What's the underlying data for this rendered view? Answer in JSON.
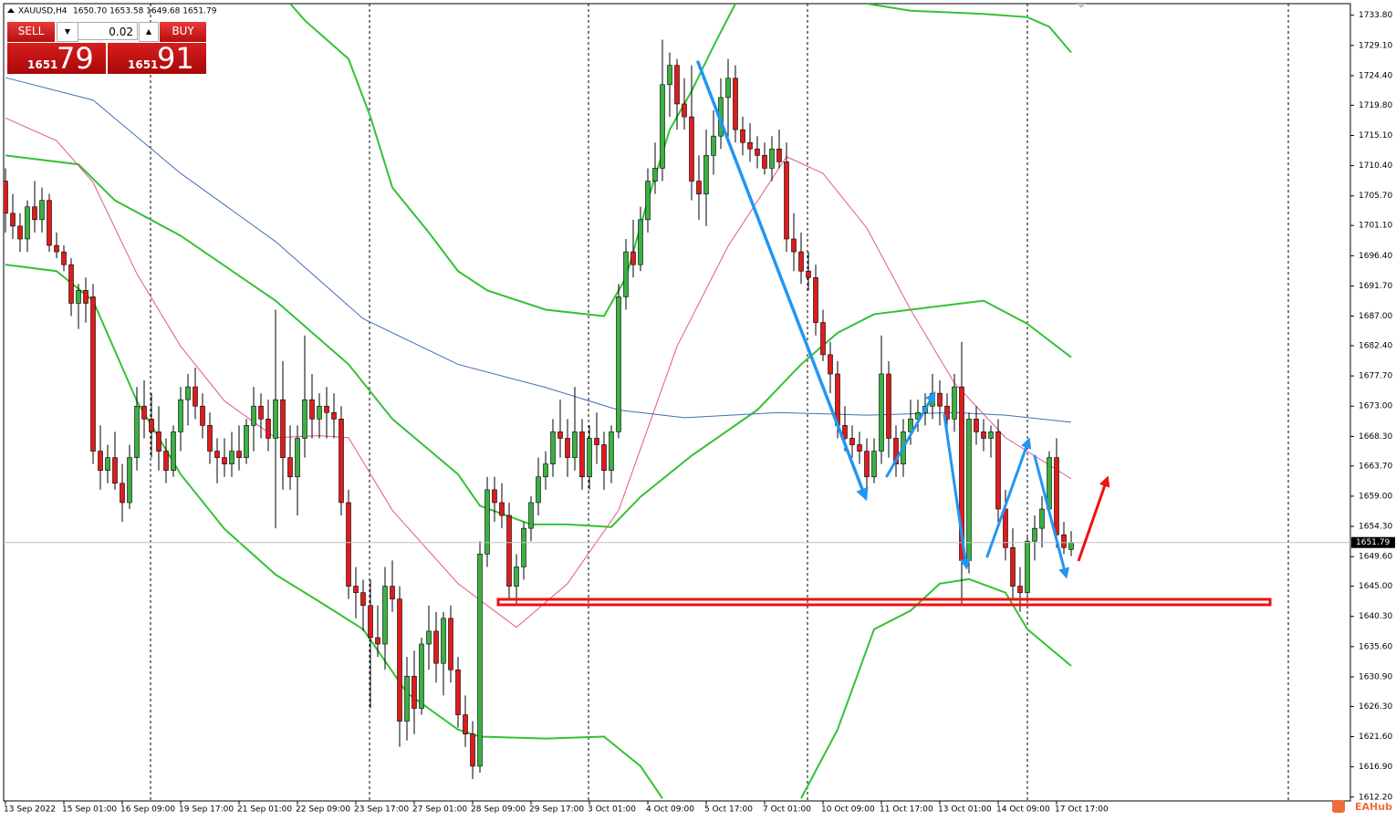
{
  "chart_data": {
    "type": "candlestick",
    "title": "XAUUSD,H4",
    "subtitle": "1650.70 1653.58 1649.68 1651.79",
    "categories": [
      "13 Sep 2022",
      null,
      null,
      null,
      null,
      null,
      null,
      null,
      "15 Sep 01:00",
      null,
      null,
      null,
      null,
      null,
      null,
      null,
      "16 Sep 09:00",
      null,
      null,
      null,
      null,
      null,
      null,
      null,
      "19 Sep 17:00",
      null,
      null,
      null,
      null,
      null,
      null,
      null,
      "21 Sep 01:00",
      null,
      null,
      null,
      null,
      null,
      null,
      null,
      "22 Sep 09:00",
      null,
      null,
      null,
      null,
      null,
      null,
      null,
      "23 Sep 17:00",
      null,
      null,
      null,
      null,
      null,
      null,
      null,
      "27 Sep 01:00",
      null,
      null,
      null,
      null,
      null,
      null,
      null,
      "28 Sep 09:00",
      null,
      null,
      null,
      null,
      null,
      null,
      null,
      "29 Sep 17:00",
      null,
      null,
      null,
      null,
      null,
      null,
      null,
      "3 Oct 01:00",
      null,
      null,
      null,
      null,
      null,
      null,
      null,
      "4 Oct 09:00",
      null,
      null,
      null,
      null,
      null,
      null,
      null,
      "5 Oct 17:00",
      null,
      null,
      null,
      null,
      null,
      null,
      null,
      "7 Oct 01:00",
      null,
      null,
      null,
      null,
      null,
      null,
      null,
      "10 Oct 09:00",
      null,
      null,
      null,
      null,
      null,
      null,
      null,
      "11 Oct 17:00",
      null,
      null,
      null,
      null,
      null,
      null,
      null,
      "13 Oct 01:00",
      null,
      null,
      null,
      null,
      null,
      null,
      null,
      "14 Oct 09:00",
      null,
      null,
      null,
      null,
      null,
      null,
      null,
      "17 Oct 17:00",
      null,
      null
    ],
    "candles": [
      [
        1708,
        1710,
        1700,
        1703
      ],
      [
        1703,
        1706,
        1699,
        1701
      ],
      [
        1701,
        1703,
        1697,
        1699
      ],
      [
        1699,
        1705,
        1697,
        1704
      ],
      [
        1704,
        1708,
        1700,
        1702
      ],
      [
        1702,
        1707,
        1700,
        1705
      ],
      [
        1705,
        1706,
        1697,
        1698
      ],
      [
        1698,
        1700,
        1696,
        1697
      ],
      [
        1697,
        1698,
        1694,
        1695
      ],
      [
        1695,
        1696,
        1687,
        1689
      ],
      [
        1689,
        1692,
        1685,
        1691
      ],
      [
        1691,
        1693,
        1686,
        1689
      ],
      [
        1690,
        1692,
        1664,
        1666
      ],
      [
        1666,
        1670,
        1660,
        1663
      ],
      [
        1663,
        1667,
        1661,
        1665
      ],
      [
        1665,
        1669,
        1660,
        1661
      ],
      [
        1661,
        1664,
        1655,
        1658
      ],
      [
        1658,
        1667,
        1657,
        1665
      ],
      [
        1665,
        1676,
        1663,
        1673
      ],
      [
        1673,
        1677,
        1668,
        1671
      ],
      [
        1671,
        1675,
        1665,
        1669
      ],
      [
        1669,
        1673,
        1663,
        1666
      ],
      [
        1666,
        1668,
        1661,
        1663
      ],
      [
        1663,
        1670,
        1662,
        1669
      ],
      [
        1669,
        1676,
        1666,
        1674
      ],
      [
        1674,
        1678,
        1670,
        1676
      ],
      [
        1676,
        1679,
        1671,
        1673
      ],
      [
        1673,
        1675,
        1668,
        1670
      ],
      [
        1670,
        1672,
        1664,
        1666
      ],
      [
        1666,
        1668,
        1661,
        1665
      ],
      [
        1665,
        1668,
        1662,
        1664
      ],
      [
        1664,
        1669,
        1662,
        1666
      ],
      [
        1666,
        1670,
        1663,
        1665
      ],
      [
        1665,
        1671,
        1664,
        1670
      ],
      [
        1670,
        1676,
        1666,
        1673
      ],
      [
        1673,
        1675,
        1668,
        1671
      ],
      [
        1671,
        1674,
        1666,
        1668
      ],
      [
        1668,
        1688,
        1654,
        1674
      ],
      [
        1674,
        1680,
        1660,
        1665
      ],
      [
        1665,
        1670,
        1660,
        1662
      ],
      [
        1662,
        1670,
        1656,
        1668
      ],
      [
        1668,
        1684,
        1665,
        1674
      ],
      [
        1674,
        1678,
        1668,
        1671
      ],
      [
        1671,
        1675,
        1668,
        1673
      ],
      [
        1673,
        1676,
        1668,
        1672
      ],
      [
        1672,
        1675,
        1668,
        1671
      ],
      [
        1671,
        1673,
        1656,
        1658
      ],
      [
        1658,
        1660,
        1643,
        1645
      ],
      [
        1645,
        1648,
        1640,
        1644
      ],
      [
        1644,
        1646,
        1638,
        1642
      ],
      [
        1642,
        1646,
        1626,
        1637
      ],
      [
        1637,
        1642,
        1634,
        1636
      ],
      [
        1636,
        1648,
        1632,
        1645
      ],
      [
        1645,
        1649,
        1641,
        1643
      ],
      [
        1643,
        1645,
        1620,
        1624
      ],
      [
        1624,
        1634,
        1621,
        1631
      ],
      [
        1631,
        1635,
        1622,
        1626
      ],
      [
        1626,
        1637,
        1625,
        1636
      ],
      [
        1636,
        1642,
        1632,
        1638
      ],
      [
        1638,
        1641,
        1630,
        1633
      ],
      [
        1633,
        1641,
        1628,
        1640
      ],
      [
        1640,
        1642,
        1630,
        1632
      ],
      [
        1632,
        1634,
        1623,
        1625
      ],
      [
        1625,
        1628,
        1620,
        1622
      ],
      [
        1622,
        1624,
        1615,
        1617
      ],
      [
        1617,
        1652,
        1616,
        1650
      ],
      [
        1650,
        1662,
        1648,
        1660
      ],
      [
        1660,
        1662,
        1655,
        1658
      ],
      [
        1658,
        1661,
        1654,
        1656
      ],
      [
        1656,
        1658,
        1643,
        1645
      ],
      [
        1645,
        1650,
        1642,
        1648
      ],
      [
        1648,
        1655,
        1646,
        1654
      ],
      [
        1654,
        1659,
        1652,
        1658
      ],
      [
        1658,
        1665,
        1656,
        1662
      ],
      [
        1662,
        1666,
        1660,
        1664
      ],
      [
        1664,
        1671,
        1662,
        1669
      ],
      [
        1669,
        1674,
        1665,
        1668
      ],
      [
        1668,
        1671,
        1662,
        1665
      ],
      [
        1665,
        1676,
        1663,
        1669
      ],
      [
        1669,
        1671,
        1660,
        1662
      ],
      [
        1662,
        1670,
        1660,
        1668
      ],
      [
        1668,
        1672,
        1664,
        1667
      ],
      [
        1667,
        1669,
        1660,
        1663
      ],
      [
        1663,
        1670,
        1661,
        1669
      ],
      [
        1669,
        1692,
        1668,
        1690
      ],
      [
        1690,
        1699,
        1688,
        1697
      ],
      [
        1697,
        1702,
        1693,
        1695
      ],
      [
        1695,
        1704,
        1694,
        1702
      ],
      [
        1702,
        1710,
        1700,
        1708
      ],
      [
        1708,
        1714,
        1706,
        1710
      ],
      [
        1710,
        1730,
        1708,
        1723
      ],
      [
        1723,
        1728,
        1718,
        1726
      ],
      [
        1726,
        1727,
        1716,
        1720
      ],
      [
        1720,
        1724,
        1716,
        1718
      ],
      [
        1718,
        1726,
        1705,
        1708
      ],
      [
        1708,
        1712,
        1702,
        1706
      ],
      [
        1706,
        1716,
        1701,
        1712
      ],
      [
        1712,
        1719,
        1709,
        1715
      ],
      [
        1715,
        1724,
        1713,
        1721
      ],
      [
        1721,
        1727,
        1714,
        1724
      ],
      [
        1724,
        1726,
        1714,
        1716
      ],
      [
        1716,
        1718,
        1712,
        1714
      ],
      [
        1714,
        1717,
        1711,
        1713
      ],
      [
        1713,
        1715,
        1710,
        1712
      ],
      [
        1712,
        1714,
        1709,
        1710
      ],
      [
        1710,
        1715,
        1708,
        1713
      ],
      [
        1713,
        1716,
        1710,
        1711
      ],
      [
        1711,
        1714,
        1697,
        1699
      ],
      [
        1699,
        1703,
        1694,
        1697
      ],
      [
        1697,
        1700,
        1692,
        1694
      ],
      [
        1694,
        1697,
        1691,
        1693
      ],
      [
        1693,
        1695,
        1684,
        1686
      ],
      [
        1686,
        1688,
        1680,
        1681
      ],
      [
        1681,
        1683,
        1675,
        1678
      ],
      [
        1678,
        1680,
        1668,
        1670
      ],
      [
        1670,
        1673,
        1666,
        1668
      ],
      [
        1668,
        1670,
        1665,
        1667
      ],
      [
        1667,
        1669,
        1664,
        1666
      ],
      [
        1666,
        1668,
        1660,
        1662
      ],
      [
        1662,
        1668,
        1661,
        1666
      ],
      [
        1666,
        1684,
        1664,
        1678
      ],
      [
        1678,
        1680,
        1665,
        1668
      ],
      [
        1668,
        1670,
        1662,
        1664
      ],
      [
        1664,
        1671,
        1662,
        1669
      ],
      [
        1669,
        1674,
        1667,
        1671
      ],
      [
        1671,
        1674,
        1669,
        1672
      ],
      [
        1672,
        1675,
        1670,
        1673
      ],
      [
        1673,
        1678,
        1671,
        1675
      ],
      [
        1675,
        1677,
        1670,
        1673
      ],
      [
        1673,
        1675,
        1669,
        1671
      ],
      [
        1671,
        1678,
        1669,
        1676
      ],
      [
        1676,
        1683,
        1642,
        1649
      ],
      [
        1649,
        1672,
        1647,
        1671
      ],
      [
        1671,
        1673,
        1667,
        1669
      ],
      [
        1669,
        1671,
        1666,
        1668
      ],
      [
        1668,
        1670,
        1665,
        1669
      ],
      [
        1669,
        1671,
        1655,
        1657
      ],
      [
        1657,
        1660,
        1649,
        1651
      ],
      [
        1651,
        1654,
        1643,
        1645
      ],
      [
        1645,
        1648,
        1641,
        1644
      ],
      [
        1644,
        1653,
        1643,
        1652
      ],
      [
        1652,
        1656,
        1649,
        1654
      ],
      [
        1654,
        1659,
        1651,
        1657
      ],
      [
        1657,
        1666,
        1656,
        1665
      ],
      [
        1665,
        1668,
        1651,
        1653
      ],
      [
        1653,
        1655,
        1650,
        1651
      ],
      [
        1650.7,
        1653.58,
        1649.68,
        1651.79
      ]
    ],
    "up_color": "#3cb043",
    "down_color": "#dd1c1c",
    "indicators": [
      {
        "color": "#33c233",
        "x": [
          39,
          41,
          47,
          50,
          53,
          58,
          62,
          66,
          74,
          82,
          85,
          88,
          91,
          94,
          97,
          100,
          null,
          118,
          124,
          134,
          140,
          143,
          146
        ],
        "values": [
          1735.6,
          1733,
          1727,
          1718,
          1707,
          1700,
          1694,
          1691,
          1688,
          1687,
          1693,
          1705,
          1716,
          1722,
          1729,
          1735.6,
          null,
          1735.6,
          1734.5,
          1734,
          1733.5,
          1732,
          1728
        ]
      },
      {
        "color": "#33c233",
        "x": [
          0,
          10,
          15,
          24,
          37,
          47,
          53,
          62,
          65,
          72,
          77,
          83,
          87,
          94,
          103,
          109,
          114,
          119,
          124,
          134,
          140,
          146
        ],
        "values": [
          1712,
          1710.6,
          1705,
          1699.5,
          1689.4,
          1679.5,
          1671,
          1662.4,
          1657.5,
          1654.6,
          1654.6,
          1654.2,
          1658.9,
          1665.3,
          1672.4,
          1679.5,
          1684.4,
          1687.3,
          1688,
          1689.4,
          1685.8,
          1680.6
        ]
      },
      {
        "color": "#33c233",
        "x": [
          0,
          7,
          12,
          18,
          24,
          30,
          37,
          43,
          49,
          55,
          62,
          65,
          74,
          82,
          87,
          90,
          null,
          109,
          114,
          119,
          124,
          128,
          132,
          137,
          140,
          146
        ],
        "values": [
          1695,
          1694,
          1689.4,
          1673.8,
          1662.4,
          1653.9,
          1646.8,
          1642.6,
          1638.3,
          1628.4,
          1622.7,
          1621.6,
          1621.3,
          1621.6,
          1617,
          1612,
          null,
          1612,
          1622.7,
          1638.3,
          1641.2,
          1645.4,
          1646.1,
          1644,
          1638.3,
          1632.6
        ]
      },
      {
        "color": "#e0588a",
        "x": [
          0,
          7,
          12,
          18,
          24,
          30,
          37,
          43,
          47,
          53,
          62,
          70,
          77,
          84,
          92,
          99,
          107,
          112,
          118,
          124,
          130,
          137,
          146
        ],
        "values": [
          1717.8,
          1714.3,
          1707.8,
          1693.6,
          1682.3,
          1673.8,
          1668.1,
          1668.4,
          1668.1,
          1656.8,
          1645.4,
          1638.6,
          1645.4,
          1656.8,
          1682.3,
          1697.9,
          1711.8,
          1709.2,
          1700.7,
          1688,
          1676.6,
          1668.1,
          1661.7
        ]
      },
      {
        "color": "#3f6fb5",
        "x": [
          0,
          12,
          24,
          37,
          49,
          62,
          74,
          84,
          93,
          106,
          118,
          130,
          137,
          146
        ],
        "values": [
          1724.1,
          1720.6,
          1709.2,
          1698.6,
          1686.6,
          1679.5,
          1675.9,
          1672.4,
          1671.2,
          1672,
          1671.6,
          1672,
          1671.6,
          1670.5
        ]
      }
    ],
    "last_price": {
      "value": 1651.79,
      "label": "1651.79"
    },
    "ylim": [
      1611.6,
      1735.6
    ],
    "yticks": [
      {
        "value": 1733.8,
        "label": "1733.80"
      },
      {
        "value": 1729.1,
        "label": "1729.10"
      },
      {
        "value": 1724.4,
        "label": "1724.40"
      },
      {
        "value": 1719.8,
        "label": "1719.80"
      },
      {
        "value": 1715.1,
        "label": "1715.10"
      },
      {
        "value": 1710.4,
        "label": "1710.40"
      },
      {
        "value": 1705.7,
        "label": "1705.70"
      },
      {
        "value": 1701.1,
        "label": "1701.10"
      },
      {
        "value": 1696.4,
        "label": "1696.40"
      },
      {
        "value": 1691.7,
        "label": "1691.70"
      },
      {
        "value": 1687,
        "label": "1687.00"
      },
      {
        "value": 1682.4,
        "label": "1682.40"
      },
      {
        "value": 1677.7,
        "label": "1677.70"
      },
      {
        "value": 1673,
        "label": "1673.00"
      },
      {
        "value": 1668.3,
        "label": "1668.30"
      },
      {
        "value": 1663.7,
        "label": "1663.70"
      },
      {
        "value": 1659,
        "label": "1659.00"
      },
      {
        "value": 1654.3,
        "label": "1654.30"
      },
      {
        "value": 1649.6,
        "label": "1649.60"
      },
      {
        "value": 1645,
        "label": "1645.00"
      },
      {
        "value": 1640.3,
        "label": "1640.30"
      },
      {
        "value": 1635.6,
        "label": "1635.60"
      },
      {
        "value": 1630.9,
        "label": "1630.90"
      },
      {
        "value": 1626.3,
        "label": "1626.30"
      },
      {
        "value": 1621.6,
        "label": "1621.60"
      },
      {
        "value": 1616.9,
        "label": "1616.90"
      },
      {
        "value": 1612.2,
        "label": "1612.20"
      }
    ],
    "grid": false
  },
  "trade_panel": {
    "sell": "SELL",
    "buy": "BUY",
    "volume": "0.02",
    "bid_big": "1651",
    "bid": "79",
    "ask_big": "1651",
    "ask": "91"
  },
  "watermark": "EAHub"
}
